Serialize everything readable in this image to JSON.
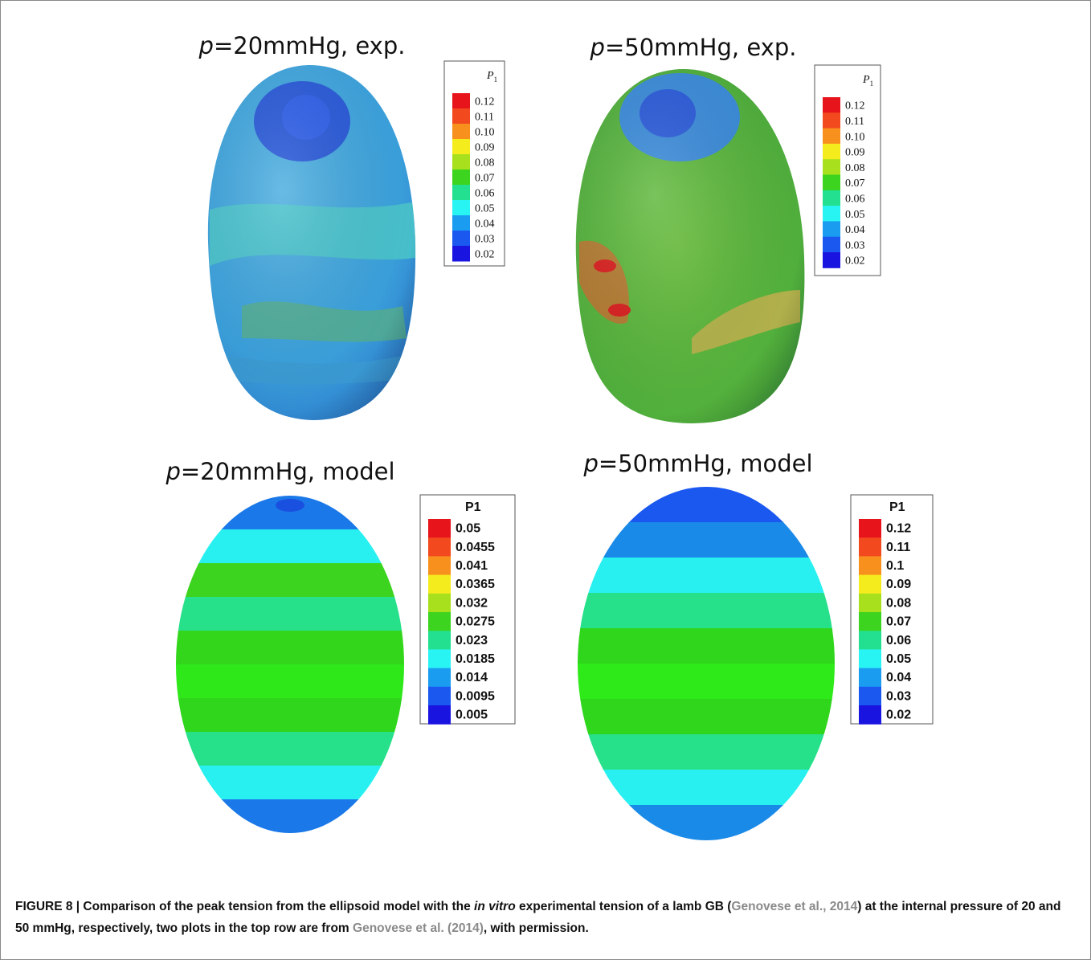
{
  "figure": {
    "panels": [
      {
        "title_var": "p",
        "title_rest": "=20mmHg, exp.",
        "legend": {
          "heading": "P",
          "heading_sub": "1",
          "labels": [
            "0.12",
            "0.11",
            "0.10",
            "0.09",
            "0.08",
            "0.07",
            "0.06",
            "0.05",
            "0.04",
            "0.03",
            "0.02"
          ]
        }
      },
      {
        "title_var": "p",
        "title_rest": "=50mmHg, exp.",
        "legend": {
          "heading": "P",
          "heading_sub": "1",
          "labels": [
            "0.12",
            "0.11",
            "0.10",
            "0.09",
            "0.08",
            "0.07",
            "0.06",
            "0.05",
            "0.04",
            "0.03",
            "0.02"
          ]
        }
      },
      {
        "title_var": "p",
        "title_rest": "=20mmHg, model",
        "legend": {
          "heading": "P1",
          "labels": [
            "0.05",
            "0.0455",
            "0.041",
            "0.0365",
            "0.032",
            "0.0275",
            "0.023",
            "0.0185",
            "0.014",
            "0.0095",
            "0.005"
          ]
        }
      },
      {
        "title_var": "p",
        "title_rest": "=50mmHg, model",
        "legend": {
          "heading": "P1",
          "labels": [
            "0.12",
            "0.11",
            "0.1",
            "0.09",
            "0.08",
            "0.07",
            "0.06",
            "0.05",
            "0.04",
            "0.03",
            "0.02"
          ]
        }
      }
    ],
    "caption": [
      {
        "text": "FIGURE 8 | Comparison of the peak tension from the ellipsoid model with the ",
        "style": "plain"
      },
      {
        "text": "in vitro",
        "style": "italic"
      },
      {
        "text": " experimental tension of a lamb GB (",
        "style": "plain"
      },
      {
        "text": "Genovese et al., 2014",
        "style": "link"
      },
      {
        "text": ") at the internal pressure of 20 and 50 mmHg, respectively, two plots in the top row are from ",
        "style": "plain"
      },
      {
        "text": "Genovese et al. (2014)",
        "style": "link"
      },
      {
        "text": ", with permission.",
        "style": "plain"
      }
    ]
  }
}
